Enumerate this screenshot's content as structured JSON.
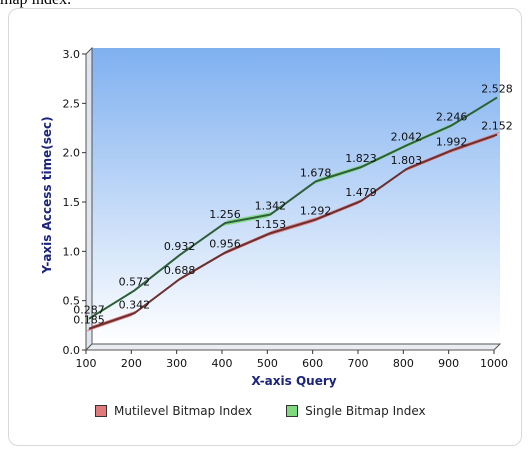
{
  "page_top_text": "map index.",
  "chart_data": {
    "type": "line",
    "x": [
      100,
      200,
      300,
      400,
      500,
      600,
      700,
      800,
      900,
      1000
    ],
    "series": [
      {
        "name": "Mutilevel Bitmap Index",
        "values": [
          0.185,
          0.342,
          0.688,
          0.956,
          1.153,
          1.292,
          1.479,
          1.803,
          1.992,
          2.152
        ],
        "color": "#e07b7b",
        "line_color": "#6b2f2f"
      },
      {
        "name": "Single Bitmap Index",
        "values": [
          0.287,
          0.572,
          0.932,
          1.256,
          1.342,
          1.678,
          1.823,
          2.042,
          2.246,
          2.528
        ],
        "color": "#7fd97f",
        "line_color": "#2e5e3a"
      }
    ],
    "xlabel": "X-axis Query",
    "ylabel": "Y-axis Access time(sec)",
    "xlim": [
      100,
      1000
    ],
    "ylim": [
      0.0,
      3.0
    ],
    "xticks": [
      "100",
      "200",
      "300",
      "400",
      "500",
      "600",
      "700",
      "800",
      "900",
      "1000"
    ],
    "yticks": [
      "0.0",
      "0.5",
      "1.0",
      "1.5",
      "2.0",
      "2.5",
      "3.0"
    ],
    "grid": false,
    "legend_position": "bottom",
    "background_gradient": [
      "#7fb0f0",
      "#ffffff"
    ]
  }
}
